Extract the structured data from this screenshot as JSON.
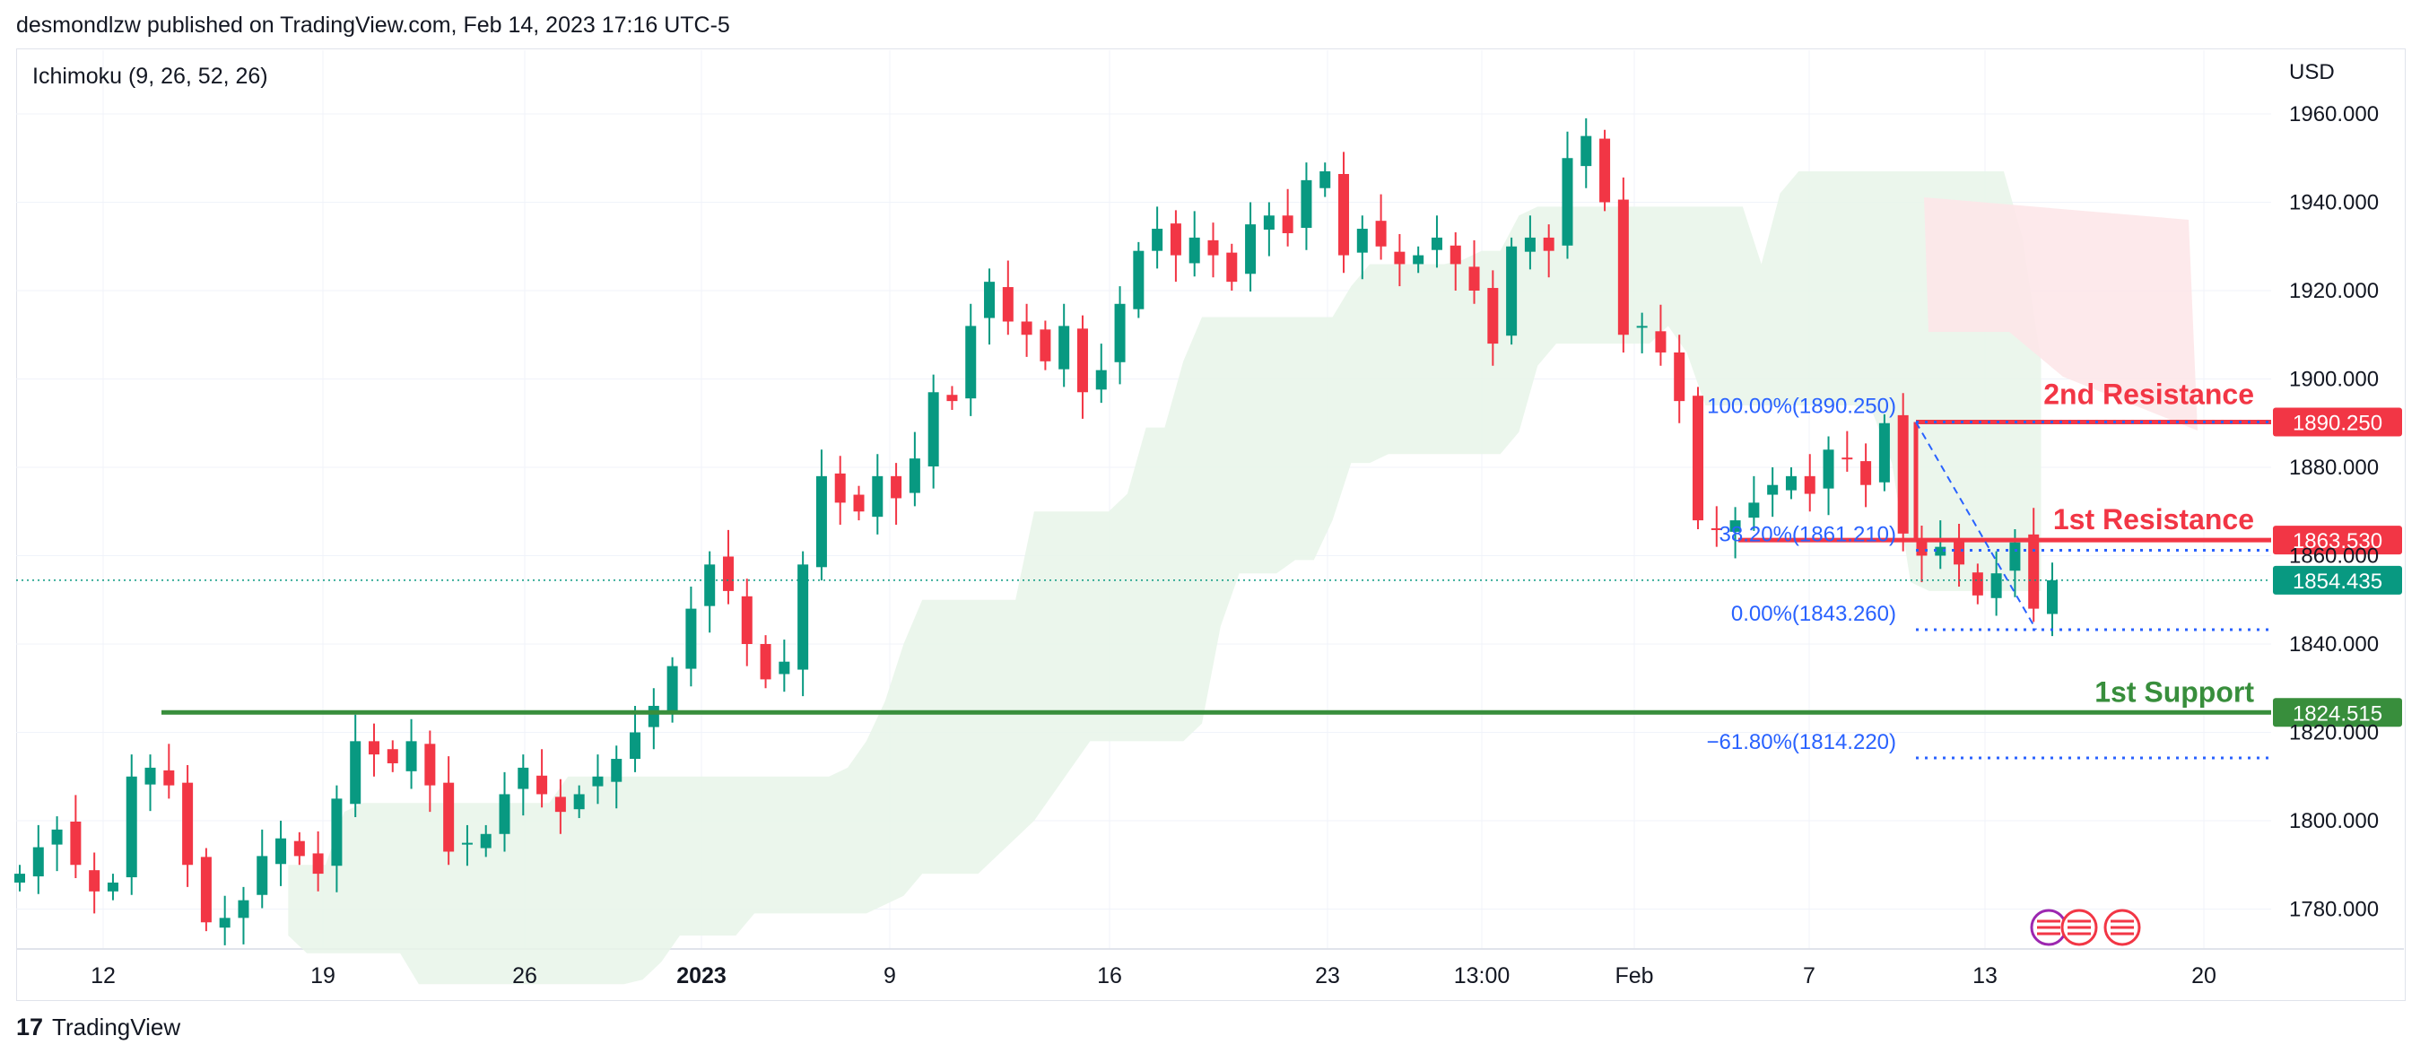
{
  "header": {
    "attribution": "desmondlzw published on TradingView.com, Feb 14, 2023 17:16 UTC-5"
  },
  "indicator": {
    "label": "Ichimoku (9, 26, 52, 26)"
  },
  "currency": "USD",
  "footer": {
    "logo_glyph": "17",
    "brand": "TradingView"
  },
  "colors": {
    "up": "#089981",
    "down": "#f23645",
    "support": "#388e3c",
    "resistance": "#f23645",
    "fib": "#2962ff",
    "fibText": "#2962ff",
    "cloudUp": "#e8f5e9",
    "cloudDown": "#fde7e9",
    "grid": "#f0f3fa",
    "axisText": "#131722"
  },
  "chart_data": {
    "type": "candlestick",
    "title": "",
    "y_axis": {
      "ticks": [
        "1960.000",
        "1940.000",
        "1920.000",
        "1900.000",
        "1880.000",
        "1860.000",
        "1840.000",
        "1820.000",
        "1800.000",
        "1780.000"
      ],
      "range": [
        1770,
        1965
      ]
    },
    "x_axis": {
      "ticks": [
        {
          "label": "12",
          "bold": false
        },
        {
          "label": "19",
          "bold": false
        },
        {
          "label": "26",
          "bold": false
        },
        {
          "label": "2023",
          "bold": true
        },
        {
          "label": "9",
          "bold": false
        },
        {
          "label": "16",
          "bold": false
        },
        {
          "label": "23",
          "bold": false
        },
        {
          "label": "13:00",
          "bold": false
        },
        {
          "label": "Feb",
          "bold": false
        },
        {
          "label": "7",
          "bold": false
        },
        {
          "label": "13",
          "bold": false
        },
        {
          "label": "20",
          "bold": false
        }
      ]
    },
    "price_markers": [
      {
        "label": "1890.250",
        "value": 1890.25,
        "kind": "resistance"
      },
      {
        "label": "1863.530",
        "value": 1863.53,
        "kind": "resistance"
      },
      {
        "label": "1854.435",
        "value": 1854.435,
        "kind": "last"
      },
      {
        "label": "1824.515",
        "value": 1824.515,
        "kind": "support"
      }
    ],
    "levels": [
      {
        "name": "2nd Resistance",
        "value": 1890.25,
        "kind": "resistance"
      },
      {
        "name": "1st Resistance",
        "value": 1863.53,
        "kind": "resistance"
      },
      {
        "name": "1st Support",
        "value": 1824.515,
        "kind": "support"
      }
    ],
    "fibonacci": [
      {
        "label": "100.00%(1890.250)",
        "value": 1890.25
      },
      {
        "label": "38.20%(1861.210)",
        "value": 1861.21
      },
      {
        "label": "0.00%(1843.260)",
        "value": 1843.26
      },
      {
        "label": "−61.80%(1814.220)",
        "value": 1814.22
      }
    ],
    "last_price": 1854.435,
    "price_waypoints": [
      1788,
      1794,
      1798,
      1790,
      1784,
      1786,
      1810,
      1812,
      1808,
      1790,
      1777,
      1778,
      1782,
      1792,
      1796,
      1792,
      1788,
      1805,
      1818,
      1815,
      1813,
      1818,
      1808,
      1793,
      1795,
      1797,
      1806,
      1812,
      1806,
      1802,
      1806,
      1810,
      1814,
      1820,
      1826,
      1835,
      1848,
      1858,
      1852,
      1840,
      1832,
      1836,
      1858,
      1878,
      1872,
      1870,
      1878,
      1873,
      1882,
      1897,
      1895,
      1912,
      1922,
      1913,
      1910,
      1904,
      1912,
      1897,
      1902,
      1917,
      1929,
      1934,
      1928,
      1932,
      1928,
      1922,
      1935,
      1937,
      1933,
      1945,
      1947,
      1928,
      1934,
      1930,
      1926,
      1928,
      1932,
      1926,
      1920,
      1908,
      1930,
      1932,
      1929,
      1950,
      1955,
      1940,
      1910,
      1912,
      1906,
      1895,
      1868,
      1866,
      1868,
      1872,
      1876,
      1878,
      1874,
      1884,
      1882,
      1876,
      1890,
      1865,
      1860,
      1862,
      1858,
      1851,
      1856,
      1863,
      1848,
      1854.435
    ]
  }
}
